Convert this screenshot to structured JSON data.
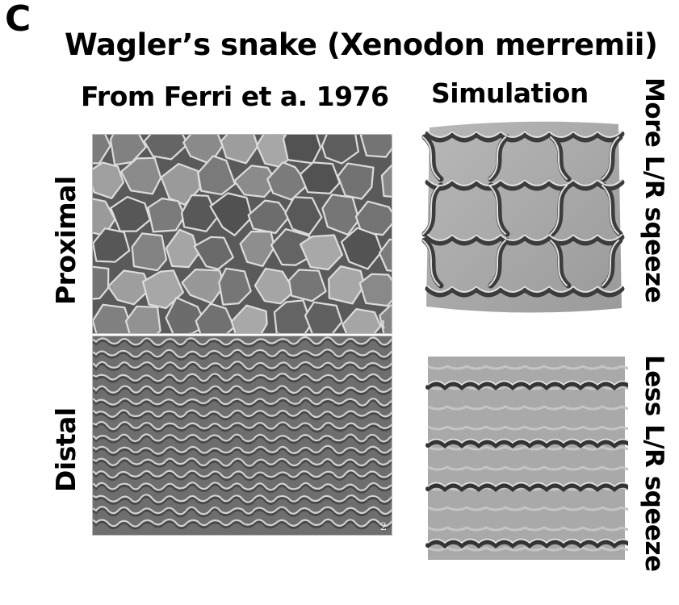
{
  "panel_letter": "C",
  "title": "Wagler’s snake (Xenodon merremii)",
  "left_column_heading": "From Ferri et a. 1976",
  "right_column_heading": "Simulation",
  "row_labels": {
    "proximal": "Proximal",
    "distal": "Distal"
  },
  "simulation_labels": {
    "top": "More L/R sqeeze",
    "bottom": "Less L/R sqeeze"
  },
  "photo_numbers": {
    "proximal": "1",
    "distal": "2"
  },
  "colors": {
    "photo_dark": "#3a3a3a",
    "photo_light": "#c8c8c8",
    "sim_face": "#a8a8a8",
    "sim_ridge": "#3c3c3c"
  }
}
